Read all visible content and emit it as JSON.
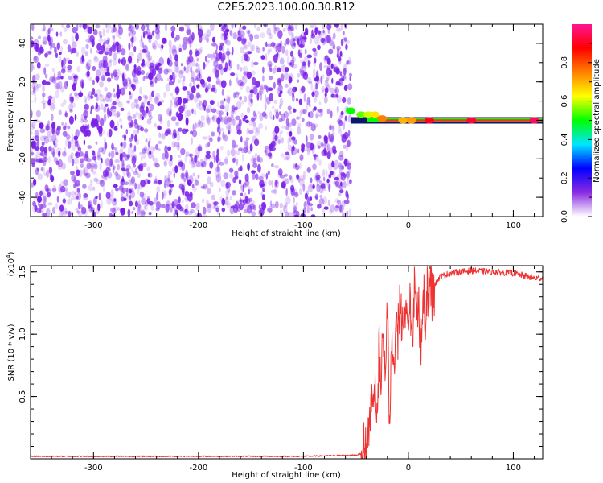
{
  "chart_data": [
    {
      "type": "heatmap",
      "title": "C2E5.2023.100.00.30.R12",
      "xlabel": "Height of straight line (km)",
      "ylabel": "Frequency (Hz)",
      "xlim": [
        -360,
        128
      ],
      "ylim": [
        -50,
        50
      ],
      "x_ticks": [
        -300,
        -200,
        -100,
        0,
        100
      ],
      "x_tick_labels": [
        "-300",
        "-200",
        "-100",
        "0",
        "100"
      ],
      "y_ticks": [
        -40,
        -20,
        0,
        20,
        40
      ],
      "y_tick_labels": [
        "-40",
        "-20",
        "0",
        "20",
        "40"
      ],
      "noise_region_x": [
        -360,
        -55
      ],
      "noise_color": "#7a1fe8",
      "signal_line_frequency": 0,
      "signal_start_x": -55,
      "signal_markers": [
        {
          "x": -55,
          "y": 5,
          "amplitude": 0.5
        },
        {
          "x": -45,
          "y": 3,
          "amplitude": 0.55
        },
        {
          "x": -38,
          "y": 3,
          "amplitude": 0.6
        },
        {
          "x": -32,
          "y": 3,
          "amplitude": 0.65
        },
        {
          "x": -25,
          "y": 1,
          "amplitude": 0.75
        },
        {
          "x": -5,
          "y": 0,
          "amplitude": 0.7
        },
        {
          "x": 3,
          "y": 0,
          "amplitude": 0.72
        },
        {
          "x": 20,
          "y": 0,
          "amplitude": 0.9
        },
        {
          "x": 60,
          "y": 0,
          "amplitude": 0.92
        },
        {
          "x": 120,
          "y": 0,
          "amplitude": 0.95
        }
      ],
      "colorbar": {
        "label": "Normalized spectral amplitude",
        "ticks": [
          0.0,
          0.2,
          0.4,
          0.6,
          0.8
        ],
        "tick_labels": [
          "0.0",
          "0.2",
          "0.4",
          "0.6",
          "0.8"
        ],
        "range": [
          0,
          1
        ],
        "colors": [
          "#ffffff",
          "#8a2be2",
          "#0000ff",
          "#00e5ff",
          "#00ff00",
          "#ffff00",
          "#ff8000",
          "#ff0000",
          "#ff1493"
        ]
      }
    },
    {
      "type": "line",
      "xlabel": "Height of straight line (km)",
      "ylabel": "SNR (10 * v/v)",
      "y_multiplier_label": "(x10",
      "y_multiplier_exponent": "4",
      "y_multiplier_close": ")",
      "xlim": [
        -360,
        128
      ],
      "ylim": [
        0,
        1.55
      ],
      "x_ticks": [
        -300,
        -200,
        -100,
        0,
        100
      ],
      "x_tick_labels": [
        "-300",
        "-200",
        "-100",
        "0",
        "100"
      ],
      "y_ticks": [
        0.5,
        1.0,
        1.5
      ],
      "y_tick_labels": [
        "0.5",
        "1.0",
        "1.5"
      ],
      "line_color": "#ee3333",
      "series": [
        {
          "name": "SNR",
          "x": [
            -360,
            -300,
            -200,
            -100,
            -50,
            -42,
            -38,
            -36,
            -34,
            -32,
            -30,
            -28,
            -26,
            -24,
            -22,
            -20,
            -18,
            -16,
            -14,
            -12,
            -10,
            -8,
            -6,
            -4,
            -2,
            0,
            2,
            4,
            6,
            8,
            10,
            12,
            14,
            16,
            18,
            20,
            22,
            25,
            30,
            40,
            50,
            60,
            80,
            100,
            110,
            120,
            128
          ],
          "values": [
            0.02,
            0.02,
            0.02,
            0.02,
            0.03,
            0.05,
            0.2,
            0.45,
            0.35,
            0.7,
            0.3,
            0.9,
            0.5,
            1.15,
            0.75,
            1.25,
            0.2,
            1.05,
            0.6,
            1.1,
            0.95,
            1.2,
            1.05,
            1.15,
            1.25,
            1.1,
            1.2,
            1.05,
            1.3,
            1.15,
            1.25,
            0.95,
            1.35,
            1.1,
            1.45,
            1.3,
            1.35,
            1.4,
            1.46,
            1.49,
            1.5,
            1.51,
            1.5,
            1.49,
            1.47,
            1.45,
            1.45
          ]
        }
      ]
    }
  ]
}
